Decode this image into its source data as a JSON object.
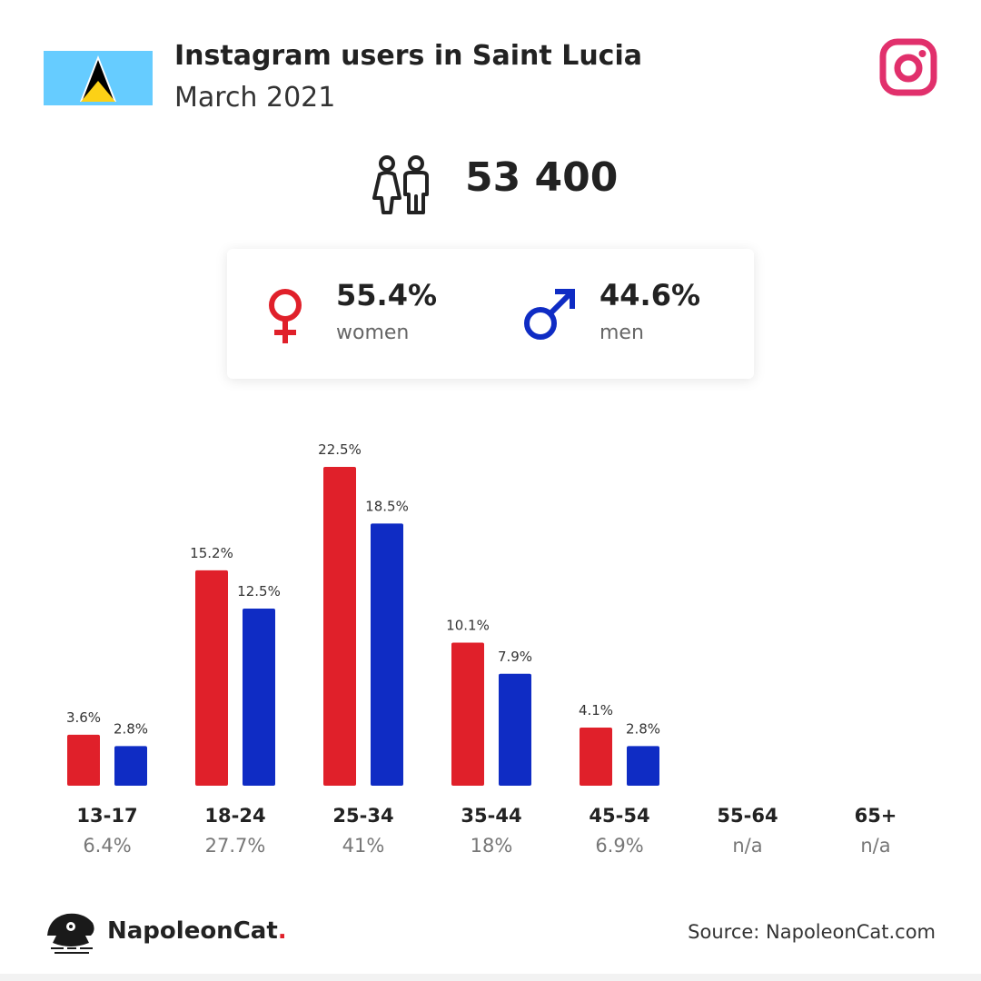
{
  "header": {
    "title": "Instagram users in Saint Lucia",
    "subtitle": "March 2021",
    "flag_icon": "saint-lucia-flag-icon",
    "platform_icon": "instagram-icon"
  },
  "total": {
    "icon": "people-icon",
    "value": "53 400"
  },
  "gender": {
    "women": {
      "icon": "female-symbol-icon",
      "percent": "55.4%",
      "label": "women",
      "color": "#e0202a"
    },
    "men": {
      "icon": "male-symbol-icon",
      "percent": "44.6%",
      "label": "men",
      "color": "#0f2cc4"
    }
  },
  "chart_data": {
    "type": "bar",
    "categories": [
      "13-17",
      "18-24",
      "25-34",
      "35-44",
      "45-54",
      "55-64",
      "65+"
    ],
    "category_totals": [
      "6.4%",
      "27.7%",
      "41%",
      "18%",
      "6.9%",
      "n/a",
      "n/a"
    ],
    "series": [
      {
        "color": "#e0202a",
        "values": [
          3.6,
          15.2,
          22.5,
          10.1,
          4.1,
          null,
          null
        ],
        "labels": [
          "3.6%",
          "15.2%",
          "22.5%",
          "10.1%",
          "4.1%",
          "",
          ""
        ]
      },
      {
        "color": "#0f2cc4",
        "values": [
          2.8,
          12.5,
          18.5,
          7.9,
          2.8,
          null,
          null
        ],
        "labels": [
          "2.8%",
          "12.5%",
          "18.5%",
          "7.9%",
          "2.8%",
          "",
          ""
        ]
      }
    ],
    "ylim": [
      0,
      22.5
    ],
    "grid": false
  },
  "footer": {
    "brand_name": "NapoleonCat",
    "brand_dot": ".",
    "brand_logo": "napoleoncat-logo-icon",
    "source": "Source: NapoleonCat.com"
  }
}
